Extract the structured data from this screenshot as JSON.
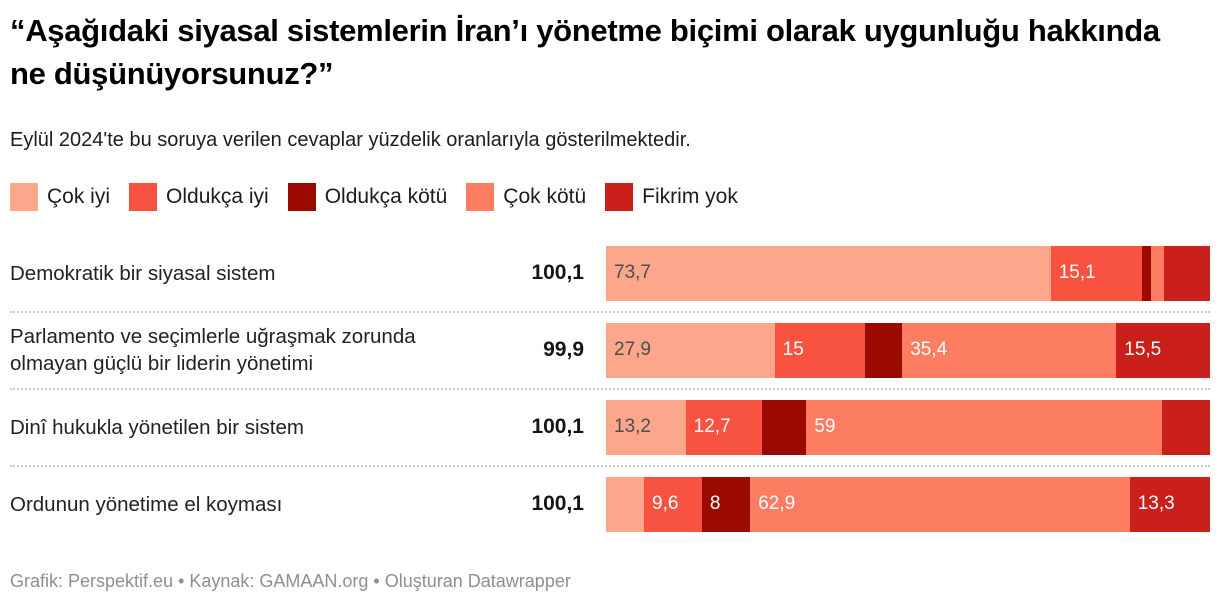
{
  "header": {
    "title": "“Aşağıdaki siyasal sistemlerin İran’ı yönetme biçimi olarak uygunluğu hakkında ne düşünüyorsunuz?”",
    "subtitle": "Eylül 2024'te bu soruya verilen cevaplar yüzdelik oranlarıyla gösterilmektedir."
  },
  "legend": {
    "items": [
      {
        "label": "Çok iyi",
        "color": "#fca78c"
      },
      {
        "label": "Oldukça iyi",
        "color": "#f75340"
      },
      {
        "label": "Oldukça kötü",
        "color": "#9a0a00"
      },
      {
        "label": "Çok kötü",
        "color": "#fd7d62"
      },
      {
        "label": "Fikrim yok",
        "color": "#ca201b"
      }
    ]
  },
  "chart_data": {
    "type": "bar",
    "orientation": "horizontal-stacked",
    "categories": [
      "Çok iyi",
      "Oldukça iyi",
      "Oldukça kötü",
      "Çok kötü",
      "Fikrim yok"
    ],
    "series_colors": [
      "#fca78c",
      "#f75340",
      "#9a0a00",
      "#fd7d62",
      "#ca201b"
    ],
    "xlim": [
      0,
      100
    ],
    "rows": [
      {
        "label": "Demokratik bir siyasal sistem",
        "total_label": "100,1",
        "values": [
          73.7,
          15.1,
          1.5,
          2.1,
          7.7
        ],
        "value_labels": [
          "73,7",
          "15,1",
          "",
          "",
          ""
        ]
      },
      {
        "label": "Parlamento ve seçimlerle uğraşmak zorunda olmayan güçlü bir liderin yönetimi",
        "total_label": "99,9",
        "values": [
          27.9,
          15,
          6.1,
          35.4,
          15.5
        ],
        "value_labels": [
          "27,9",
          "15",
          "",
          "35,4",
          "15,5"
        ]
      },
      {
        "label": "Dinî hukukla yönetilen bir sistem",
        "total_label": "100,1",
        "values": [
          13.2,
          12.7,
          7.3,
          59,
          7.9
        ],
        "value_labels": [
          "13,2",
          "12,7",
          "",
          "59",
          ""
        ]
      },
      {
        "label": "Ordunun yönetime el koyması",
        "total_label": "100,1",
        "values": [
          6.3,
          9.6,
          8,
          62.9,
          13.3
        ],
        "value_labels": [
          "",
          "9,6",
          "8",
          "62,9",
          "13,3"
        ]
      }
    ]
  },
  "footer": {
    "credit": "Grafik: Perspektif.eu • Kaynak: GAMAAN.org • Oluşturan Datawrapper"
  },
  "colors": {
    "background": "#ffffff",
    "title_text": "#000000",
    "body_text": "#222222",
    "bar_label_on_light": "#4e4e4e",
    "bar_label_on_dark": "#ffffff",
    "separator": "#cbcbcb",
    "footer_text": "#8f8f8f"
  }
}
